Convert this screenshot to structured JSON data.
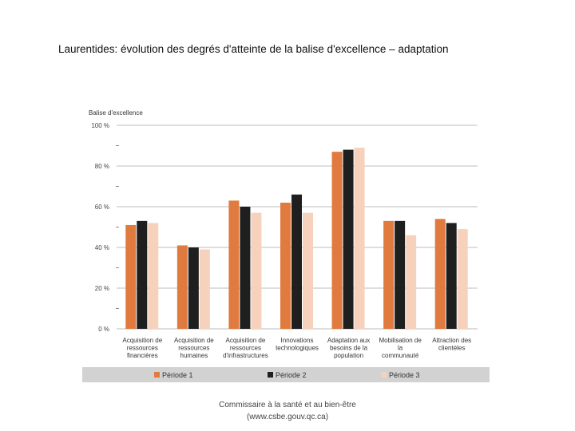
{
  "slide": {
    "title": "Laurentides: évolution des degrés d'atteinte de la balise d'excellence – adaptation",
    "footer_line1": "Commissaire à la santé et au bien-être",
    "footer_line2": "(www.csbe.gouv.qc.ca)"
  },
  "chart_data": {
    "type": "bar",
    "title": "",
    "ylabel": "Balise d'excellence",
    "xlabel": "",
    "ylim": [
      0,
      100
    ],
    "yticks": [
      0,
      20,
      40,
      60,
      80,
      100
    ],
    "ytick_labels": [
      "0 %",
      "20 %",
      "40 %",
      "60 %",
      "80 %",
      "100 %"
    ],
    "grid": true,
    "legend_position": "bottom",
    "categories": [
      [
        "Acquisition de",
        "ressources",
        "financières"
      ],
      [
        "Acquisition de",
        "ressources",
        "humaines"
      ],
      [
        "Acquisition de",
        "ressources",
        "d'infrastructures"
      ],
      [
        "Innovations",
        "technologiques"
      ],
      [
        "Adaptation aux",
        "besoins de la",
        "population"
      ],
      [
        "Mobilisation de",
        "la",
        "communauté"
      ],
      [
        "Attraction des",
        "clientèles"
      ]
    ],
    "series": [
      {
        "name": "Période 1",
        "color": "#e07a3f",
        "values": [
          51,
          41,
          63,
          62,
          87,
          53,
          54
        ]
      },
      {
        "name": "Période 2",
        "color": "#1f1f1f",
        "values": [
          53,
          40,
          60,
          66,
          88,
          53,
          52
        ]
      },
      {
        "name": "Période 3",
        "color": "#f6d2bd",
        "values": [
          52,
          39,
          57,
          57,
          89,
          46,
          49
        ]
      }
    ]
  }
}
